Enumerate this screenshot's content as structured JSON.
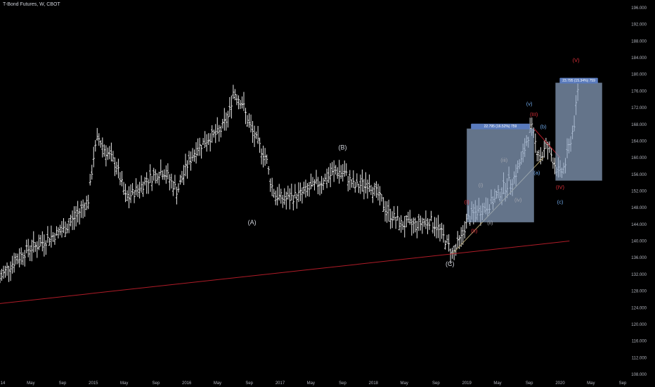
{
  "title": "T-Bond Futures, W, CBOT",
  "colors": {
    "background": "#000000",
    "bars": "#e8e8e8",
    "trendline": "#b01c28",
    "channel": "#b0a070",
    "box_fill": "#8fa5c4",
    "white_label": "#d1d4dc",
    "red_label": "#e0303a",
    "blue_label": "#6fa8e8",
    "grey_label": "#a0a4ad",
    "axis_text": "#b2b5be",
    "marker_bg": "#5a7bbd"
  },
  "price_axis": {
    "labels": [
      "196.000",
      "192.000",
      "188.000",
      "184.000",
      "180.000",
      "176.000",
      "172.000",
      "168.000",
      "164.000",
      "160.000",
      "156.000",
      "152.000",
      "148.000",
      "144.000",
      "140.000",
      "136.000",
      "132.000",
      "128.000",
      "124.000",
      "120.000",
      "116.000",
      "112.000",
      "108.000"
    ]
  },
  "time_axis": {
    "labels": [
      "14",
      "May",
      "Sep",
      "2015",
      "May",
      "Sep",
      "2016",
      "May",
      "Sep",
      "2017",
      "May",
      "Sep",
      "2018",
      "May",
      "Sep",
      "2019",
      "May",
      "Sep",
      "2020",
      "May",
      "Sep"
    ]
  },
  "wave_labels": [
    {
      "text": "(A)",
      "style": "white"
    },
    {
      "text": "(B)",
      "style": "white"
    },
    {
      "text": "(C)",
      "style": "white"
    },
    {
      "text": "(I)",
      "style": "red"
    },
    {
      "text": "(II)",
      "style": "red"
    },
    {
      "text": "(III)",
      "style": "red"
    },
    {
      "text": "(IV)",
      "style": "red"
    },
    {
      "text": "(V)",
      "style": "red"
    },
    {
      "text": "(i)",
      "style": "grey"
    },
    {
      "text": "(ii)",
      "style": "grey"
    },
    {
      "text": "(iii)",
      "style": "grey"
    },
    {
      "text": "(iv)",
      "style": "grey"
    },
    {
      "text": "(v)",
      "style": "blue"
    },
    {
      "text": "(a)",
      "style": "blue"
    },
    {
      "text": "(b)",
      "style": "blue"
    },
    {
      "text": "(c)",
      "style": "blue"
    }
  ],
  "measure_boxes": [
    {
      "label": "22.795 (16.52%) 759"
    },
    {
      "label": "23.795 (15.34%) 759"
    }
  ],
  "chart_data": {
    "type": "bar",
    "title": "T-Bond Futures, W, CBOT",
    "y_unit": "price",
    "ylim": [
      108,
      198
    ],
    "series": [
      {
        "values": [
          [
            2014.0,
            131
          ],
          [
            2014.1,
            134
          ],
          [
            2014.2,
            136
          ],
          [
            2014.3,
            138
          ],
          [
            2014.4,
            139
          ],
          [
            2014.55,
            141
          ],
          [
            2014.7,
            143
          ],
          [
            2014.85,
            147
          ],
          [
            2014.95,
            150
          ],
          [
            2015.0,
            160
          ],
          [
            2015.05,
            165
          ],
          [
            2015.12,
            162
          ],
          [
            2015.25,
            158
          ],
          [
            2015.35,
            150
          ],
          [
            2015.45,
            152
          ],
          [
            2015.6,
            155
          ],
          [
            2015.75,
            157
          ],
          [
            2015.9,
            152
          ],
          [
            2016.0,
            158
          ],
          [
            2016.1,
            162
          ],
          [
            2016.25,
            165
          ],
          [
            2016.35,
            166
          ],
          [
            2016.45,
            170
          ],
          [
            2016.5,
            176
          ],
          [
            2016.6,
            173
          ],
          [
            2016.65,
            169
          ],
          [
            2016.75,
            164
          ],
          [
            2016.85,
            160
          ],
          [
            2016.9,
            154
          ],
          [
            2016.95,
            151
          ],
          [
            2017.05,
            150
          ],
          [
            2017.2,
            151
          ],
          [
            2017.35,
            153
          ],
          [
            2017.5,
            155
          ],
          [
            2017.6,
            157
          ],
          [
            2017.7,
            156
          ],
          [
            2017.8,
            153
          ],
          [
            2017.95,
            154
          ],
          [
            2018.05,
            151
          ],
          [
            2018.15,
            147
          ],
          [
            2018.3,
            144
          ],
          [
            2018.45,
            144
          ],
          [
            2018.6,
            145
          ],
          [
            2018.7,
            143
          ],
          [
            2018.8,
            139
          ],
          [
            2018.85,
            137
          ],
          [
            2018.95,
            141
          ],
          [
            2019.0,
            145
          ],
          [
            2019.1,
            147
          ],
          [
            2019.2,
            148
          ],
          [
            2019.3,
            150
          ],
          [
            2019.4,
            153
          ],
          [
            2019.5,
            155
          ],
          [
            2019.6,
            160
          ],
          [
            2019.65,
            165
          ],
          [
            2019.7,
            167
          ],
          [
            2019.75,
            162
          ],
          [
            2019.8,
            160
          ],
          [
            2019.85,
            163
          ],
          [
            2019.9,
            161
          ],
          [
            2019.95,
            158
          ],
          [
            2020.0,
            156
          ],
          [
            2020.05,
            158
          ],
          [
            2020.1,
            163
          ],
          [
            2020.15,
            168
          ],
          [
            2020.2,
            178
          ]
        ]
      }
    ],
    "annotations": [
      "(A)",
      "(B)",
      "(C)",
      "(I)",
      "(II)",
      "(III)",
      "(IV)",
      "(V)",
      "(i)",
      "(ii)",
      "(iii)",
      "(iv)",
      "(v)",
      "(a)",
      "(b)",
      "(c)"
    ]
  }
}
